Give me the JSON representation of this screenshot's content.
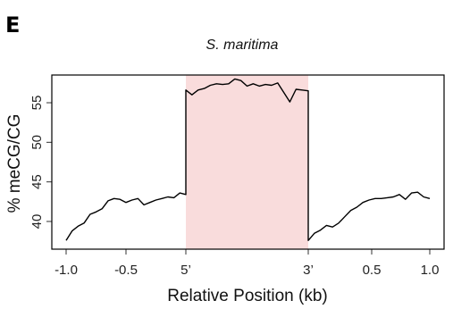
{
  "panel_label": "E",
  "chart_data": {
    "type": "line",
    "title": "S. maritima",
    "xlabel": "Relative Position (kb)",
    "ylabel": "% meCG/CG",
    "x_ticks": [
      "-1.0",
      "-0.5",
      "5’",
      "3’",
      "0.5",
      "1.0"
    ],
    "y_ticks": [
      40,
      45,
      50,
      55
    ],
    "ylim": [
      36.5,
      58.5
    ],
    "shaded_region": {
      "from": "5’",
      "to": "3’",
      "color": "#f9dcdc"
    },
    "grid": false,
    "segments": [
      {
        "name": "upstream",
        "x_kb": [
          -1.0,
          -0.95,
          -0.9,
          -0.85,
          -0.8,
          -0.75,
          -0.7,
          -0.65,
          -0.6,
          -0.55,
          -0.5,
          -0.45,
          -0.4,
          -0.35,
          -0.3,
          -0.25,
          -0.2,
          -0.15,
          -0.1,
          -0.05,
          0.0
        ],
        "y": [
          37.6,
          38.8,
          39.4,
          39.8,
          40.9,
          41.2,
          41.6,
          42.6,
          42.9,
          42.8,
          42.4,
          42.7,
          42.9,
          42.1,
          42.4,
          42.7,
          42.9,
          43.1,
          43.0,
          43.6,
          43.4
        ]
      },
      {
        "name": "gene body",
        "x_pct": [
          0,
          5,
          10,
          15,
          20,
          25,
          30,
          35,
          40,
          45,
          50,
          55,
          60,
          65,
          70,
          75,
          80,
          85,
          90,
          95,
          100
        ],
        "y": [
          56.6,
          56.0,
          56.6,
          56.8,
          57.2,
          57.4,
          57.3,
          57.4,
          58.0,
          57.8,
          57.1,
          57.4,
          57.1,
          57.3,
          57.2,
          57.5,
          56.3,
          55.1,
          56.7,
          56.6,
          56.5
        ]
      },
      {
        "name": "downstream",
        "x_kb": [
          0.0,
          0.05,
          0.1,
          0.15,
          0.2,
          0.25,
          0.3,
          0.35,
          0.4,
          0.45,
          0.5,
          0.55,
          0.6,
          0.65,
          0.7,
          0.75,
          0.8,
          0.85,
          0.9,
          0.95,
          1.0
        ],
        "y": [
          37.6,
          38.5,
          38.9,
          39.5,
          39.3,
          39.8,
          40.6,
          41.4,
          41.8,
          42.4,
          42.7,
          42.9,
          42.9,
          43.0,
          43.1,
          43.4,
          42.8,
          43.6,
          43.7,
          43.1,
          42.9
        ]
      }
    ]
  }
}
